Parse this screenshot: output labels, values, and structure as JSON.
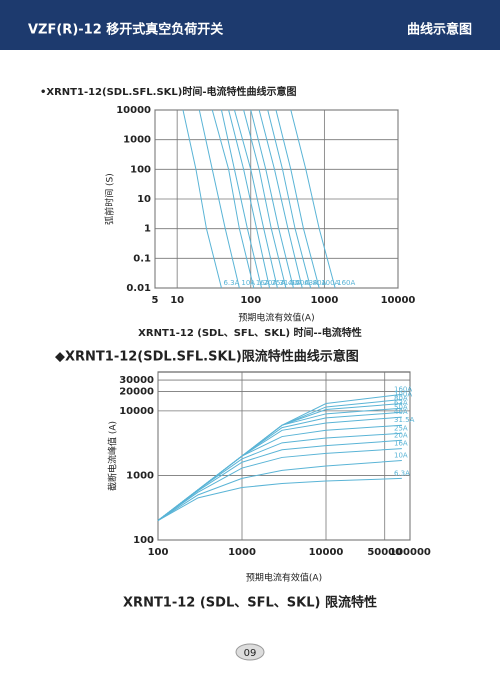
{
  "header": {
    "title": "VZF(R)-12 移开式真空负荷开关",
    "section": "曲线示意图"
  },
  "footer": {
    "page": "09"
  },
  "chart_data": [
    {
      "type": "line",
      "title": "•XRNT1-12(SDL.SFL.SKL)时间-电流特性曲线示意图",
      "x_label": "预期电流有效值(A)",
      "y_label": "弧前时间 (S)",
      "caption": "XRNT1-12 (SDL、SFL、SKL) 时间--电流特性",
      "xscale": "log",
      "yscale": "log",
      "xlim": [
        5,
        10000
      ],
      "ylim": [
        0.01,
        10000
      ],
      "xticks": [
        5,
        10,
        100,
        1000,
        10000
      ],
      "yticks": [
        0.01,
        0.1,
        1,
        10,
        100,
        1000,
        10000
      ],
      "grid": true,
      "color": "#5ab4d6",
      "series": [
        {
          "name": "6.3A",
          "x": [
            12,
            18,
            25,
            40
          ],
          "values": [
            10000,
            100,
            1,
            0.01
          ]
        },
        {
          "name": "10A",
          "x": [
            20,
            30,
            45,
            70
          ],
          "values": [
            10000,
            100,
            1,
            0.01
          ]
        },
        {
          "name": "16A",
          "x": [
            30,
            50,
            70,
            110
          ],
          "values": [
            10000,
            100,
            1,
            0.01
          ]
        },
        {
          "name": "20A",
          "x": [
            40,
            60,
            90,
            140
          ],
          "values": [
            10000,
            100,
            1,
            0.01
          ]
        },
        {
          "name": "25A",
          "x": [
            50,
            80,
            120,
            180
          ],
          "values": [
            10000,
            100,
            1,
            0.01
          ]
        },
        {
          "name": "31.5A",
          "x": [
            60,
            100,
            150,
            230
          ],
          "values": [
            10000,
            100,
            1,
            0.01
          ]
        },
        {
          "name": "40A",
          "x": [
            80,
            130,
            190,
            300
          ],
          "values": [
            10000,
            100,
            1,
            0.01
          ]
        },
        {
          "name": "50A",
          "x": [
            100,
            160,
            240,
            380
          ],
          "values": [
            10000,
            100,
            1,
            0.01
          ]
        },
        {
          "name": "63A",
          "x": [
            130,
            210,
            320,
            500
          ],
          "values": [
            10000,
            100,
            1,
            0.01
          ]
        },
        {
          "name": "80A",
          "x": [
            170,
            270,
            400,
            650
          ],
          "values": [
            10000,
            100,
            1,
            0.01
          ]
        },
        {
          "name": "100A",
          "x": [
            220,
            350,
            520,
            850
          ],
          "values": [
            10000,
            100,
            1,
            0.01
          ]
        },
        {
          "name": "160A",
          "x": [
            350,
            560,
            850,
            1400
          ],
          "values": [
            10000,
            100,
            1,
            0.01
          ]
        }
      ]
    },
    {
      "type": "line",
      "title": "◆XRNT1-12(SDL.SFL.SKL)限流特性曲线示意图",
      "x_label": "预期电流有效值(A)",
      "y_label": "截断电流峰值 (A)",
      "caption": "XRNT1-12 (SDL、SFL、SKL) 限流特性",
      "xscale": "log",
      "yscale": "log",
      "xlim": [
        100,
        100000
      ],
      "ylim": [
        100,
        40000
      ],
      "xticks": [
        100,
        1000,
        10000,
        50000,
        100000
      ],
      "yticks": [
        100,
        1000,
        10000,
        20000,
        30000
      ],
      "grid": true,
      "color": "#5ab4d6",
      "series": [
        {
          "name": "6.3A",
          "x": [
            100,
            300,
            1000,
            3000,
            10000,
            80000
          ],
          "values": [
            200,
            450,
            650,
            750,
            820,
            900
          ]
        },
        {
          "name": "10A",
          "x": [
            100,
            300,
            1000,
            3000,
            10000,
            80000
          ],
          "values": [
            200,
            500,
            900,
            1200,
            1400,
            1700
          ]
        },
        {
          "name": "16A",
          "x": [
            100,
            300,
            1000,
            3000,
            10000,
            80000
          ],
          "values": [
            200,
            550,
            1300,
            1900,
            2200,
            2600
          ]
        },
        {
          "name": "20A",
          "x": [
            100,
            300,
            1000,
            3000,
            10000,
            80000
          ],
          "values": [
            200,
            580,
            1600,
            2500,
            2900,
            3500
          ]
        },
        {
          "name": "25A",
          "x": [
            100,
            300,
            1000,
            3000,
            10000,
            80000
          ],
          "values": [
            200,
            600,
            1800,
            3200,
            3800,
            4500
          ]
        },
        {
          "name": "31.5A",
          "x": [
            100,
            300,
            1000,
            3000,
            10000,
            80000
          ],
          "values": [
            200,
            600,
            2000,
            4000,
            5000,
            6000
          ]
        },
        {
          "name": "40A",
          "x": [
            100,
            300,
            1000,
            3000,
            10000,
            80000
          ],
          "values": [
            200,
            600,
            2000,
            5000,
            6500,
            8000
          ]
        },
        {
          "name": "50A",
          "x": [
            100,
            300,
            1000,
            3000,
            10000,
            80000
          ],
          "values": [
            200,
            600,
            2000,
            5500,
            7800,
            9500
          ]
        },
        {
          "name": "63A",
          "x": [
            100,
            300,
            1000,
            3000,
            10000,
            80000
          ],
          "values": [
            200,
            600,
            2000,
            6000,
            9000,
            11000
          ]
        },
        {
          "name": "80A",
          "x": [
            100,
            300,
            1000,
            3000,
            10000,
            80000
          ],
          "values": [
            200,
            600,
            2000,
            6000,
            10500,
            13000
          ]
        },
        {
          "name": "100A",
          "x": [
            100,
            300,
            1000,
            3000,
            10000,
            80000
          ],
          "values": [
            200,
            600,
            2000,
            6000,
            11500,
            15000
          ]
        },
        {
          "name": "160A",
          "x": [
            100,
            300,
            1000,
            3000,
            10000,
            80000
          ],
          "values": [
            200,
            600,
            2000,
            6000,
            13000,
            18000
          ]
        }
      ]
    }
  ]
}
